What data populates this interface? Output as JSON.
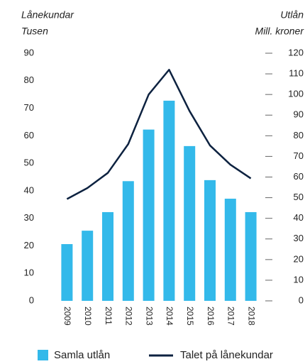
{
  "chart_data": {
    "type": "bar",
    "y_label": [
      "Lånekundar",
      "Tusen"
    ],
    "y2_label": [
      "Utlån",
      "Mill. kroner"
    ],
    "categories": [
      "2009",
      "2010",
      "2011",
      "2012",
      "2013",
      "2014",
      "2015",
      "2016",
      "2017",
      "2018"
    ],
    "series": [
      {
        "name": "Samla utlån",
        "type": "bar",
        "axis": "y2",
        "color": "#33b9ea",
        "values": [
          27.5,
          34,
          43,
          58,
          83,
          97,
          75,
          58.5,
          49.5,
          43
        ]
      },
      {
        "name": "Talet på lånekundar",
        "type": "line",
        "axis": "y",
        "color": "#0d2240",
        "values": [
          37,
          41,
          46.5,
          57,
          75,
          84,
          69,
          56.5,
          49.5,
          44.5
        ]
      }
    ],
    "ylim": [
      0,
      90
    ],
    "yticks": [
      0,
      10,
      20,
      30,
      40,
      50,
      60,
      70,
      80,
      90
    ],
    "y2lim": [
      0,
      120
    ],
    "y2ticks": [
      0,
      10,
      20,
      30,
      40,
      50,
      60,
      70,
      80,
      90,
      100,
      110,
      120
    ]
  }
}
